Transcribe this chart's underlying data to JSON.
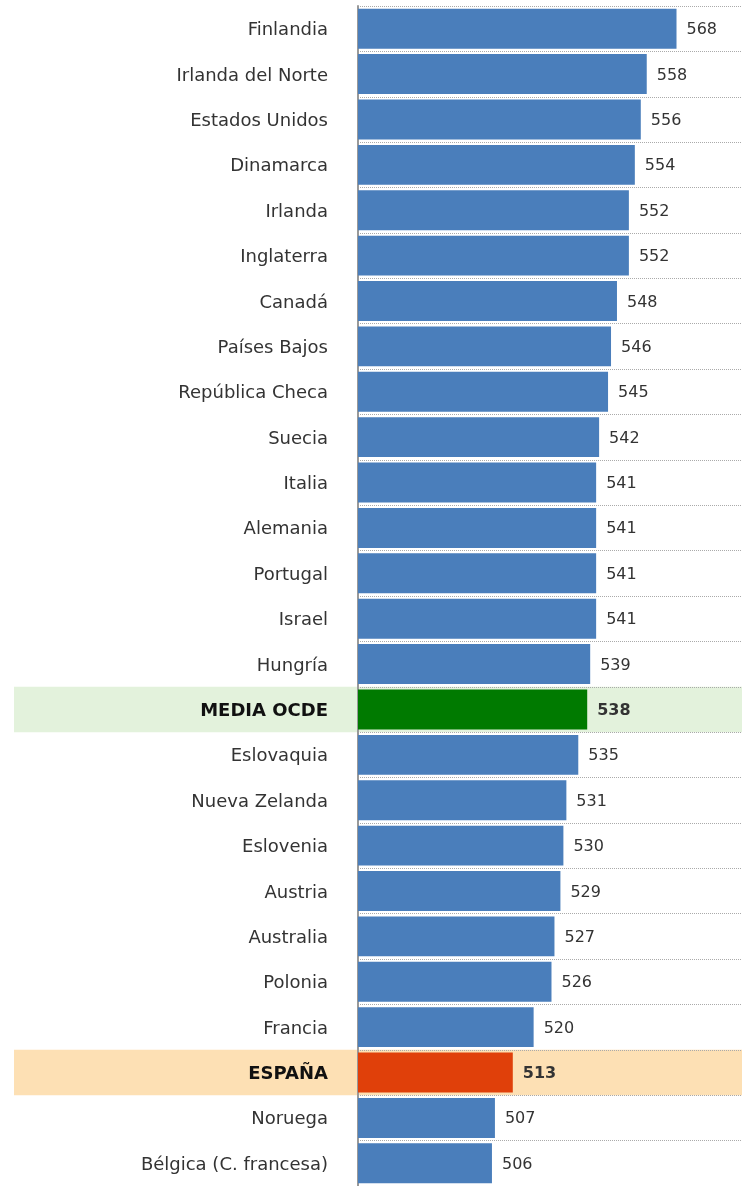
{
  "chart_data": {
    "type": "bar",
    "orientation": "horizontal",
    "categories": [
      "Finlandia",
      "Irlanda del Norte",
      "Estados Unidos",
      "Dinamarca",
      "Irlanda",
      "Inglaterra",
      "Canadá",
      "Países Bajos",
      "República Checa",
      "Suecia",
      "Italia",
      "Alemania",
      "Portugal",
      "Israel",
      "Hungría",
      "MEDIA OCDE",
      "Eslovaquia",
      "Nueva Zelanda",
      "Eslovenia",
      "Austria",
      "Australia",
      "Polonia",
      "Francia",
      "ESPAÑA",
      "Noruega",
      "Bélgica (C. francesa)"
    ],
    "values": [
      568,
      558,
      556,
      554,
      552,
      552,
      548,
      546,
      545,
      542,
      541,
      541,
      541,
      541,
      539,
      538,
      535,
      531,
      530,
      529,
      527,
      526,
      520,
      513,
      507,
      506
    ],
    "colors": [
      "#4a7ebb",
      "#4a7ebb",
      "#4a7ebb",
      "#4a7ebb",
      "#4a7ebb",
      "#4a7ebb",
      "#4a7ebb",
      "#4a7ebb",
      "#4a7ebb",
      "#4a7ebb",
      "#4a7ebb",
      "#4a7ebb",
      "#4a7ebb",
      "#4a7ebb",
      "#4a7ebb",
      "#007a00",
      "#4a7ebb",
      "#4a7ebb",
      "#4a7ebb",
      "#4a7ebb",
      "#4a7ebb",
      "#4a7ebb",
      "#4a7ebb",
      "#e0400a",
      "#4a7ebb",
      "#4a7ebb"
    ],
    "xlim": [
      461,
      590
    ],
    "tick_labels": "y",
    "grid": "y",
    "data_labels": true,
    "bands": [
      {
        "axis": "y",
        "from": "MEDIA OCDE",
        "to": "MEDIA OCDE",
        "color": "#e3f2dc"
      },
      {
        "axis": "y",
        "from": "ESPAÑA",
        "to": "ESPAÑA",
        "color": "#fde0b4"
      }
    ]
  }
}
